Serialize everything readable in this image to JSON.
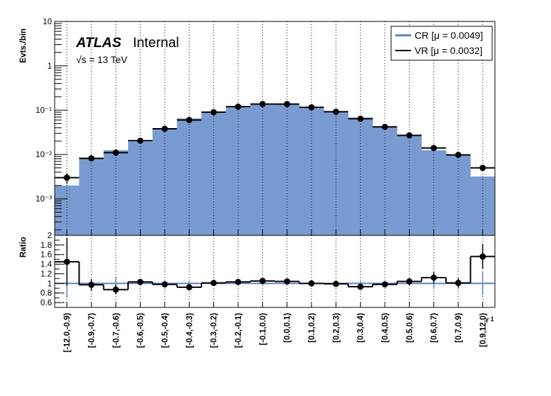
{
  "atlas_label": "ATLAS",
  "atlas_status": "Internal",
  "energy": "√s = 13 TeV",
  "colors": {
    "cr": "#7a9bd1",
    "cr_line": "#5b7fc0",
    "vr": "#000000"
  },
  "chart_data": [
    {
      "type": "bar",
      "panel": "main",
      "ylabel": "Evts./bin",
      "yscale": "log",
      "ylim": [
        0.00015,
        10
      ],
      "yticks": [
        {
          "v": 0.001,
          "t": "10⁻³"
        },
        {
          "v": 0.01,
          "t": "10⁻²"
        },
        {
          "v": 0.1,
          "t": "10⁻¹"
        },
        {
          "v": 1,
          "t": "1"
        },
        {
          "v": 10,
          "t": "10"
        }
      ],
      "categories": [
        "[-12.0,-0.9)",
        "[-0.9,-0.7)",
        "[-0.7,-0.6)",
        "[-0.6,-0.5)",
        "[-0.5,-0.4)",
        "[-0.4,-0.3)",
        "[-0.3,-0.2)",
        "[-0.2,-0.1)",
        "[-0.1,0.0)",
        "[0.0,0.1)",
        "[0.1,0.2)",
        "[0.2,0.3)",
        "[0.3,0.4)",
        "[0.4,0.5)",
        "[0.5,0.6)",
        "[0.6,0.7)",
        "[0.7,0.9)",
        "[0.9,12.0)"
      ],
      "grid": "vertical",
      "legend_position": "top-right",
      "series": [
        {
          "name": "CR [μ = 0.0049]",
          "style": "filled",
          "values": [
            0.002,
            0.0085,
            0.0125,
            0.0195,
            0.038,
            0.065,
            0.088,
            0.118,
            0.132,
            0.135,
            0.118,
            0.092,
            0.068,
            0.042,
            0.027,
            0.0125,
            0.0097,
            0.0032
          ]
        },
        {
          "name": "VR [μ = 0.0032]",
          "style": "step-with-points",
          "values": [
            0.003,
            0.0082,
            0.011,
            0.0205,
            0.038,
            0.06,
            0.09,
            0.12,
            0.137,
            0.137,
            0.116,
            0.092,
            0.064,
            0.042,
            0.027,
            0.014,
            0.0098,
            0.005
          ],
          "errors_low": [
            0.0008,
            0.0006,
            0.0008,
            0.0012,
            0.002,
            0.003,
            0.004,
            0.005,
            0.005,
            0.005,
            0.005,
            0.004,
            0.003,
            0.0025,
            0.0018,
            0.0012,
            0.0008,
            0.0005
          ],
          "errors_high": [
            0.0008,
            0.0006,
            0.0008,
            0.0012,
            0.002,
            0.003,
            0.004,
            0.005,
            0.005,
            0.005,
            0.005,
            0.004,
            0.003,
            0.0025,
            0.0018,
            0.0012,
            0.0008,
            0.0005
          ]
        }
      ]
    },
    {
      "type": "scatter",
      "panel": "ratio",
      "ylabel": "Ratio",
      "xlabel": "γ 1",
      "ylim": [
        0.5,
        2.0
      ],
      "yticks": [
        0.6,
        0.8,
        1,
        1.2,
        1.4,
        1.6,
        1.8,
        2
      ],
      "series": [
        {
          "name": "CR",
          "values": [
            1,
            1,
            1,
            1,
            1,
            1,
            1,
            1,
            1,
            1,
            1,
            1,
            1,
            1,
            1,
            1,
            1,
            1
          ],
          "errors": [
            0.3,
            0.08,
            0.12,
            0.06,
            0.05,
            0.05,
            0.04,
            0.03,
            0.03,
            0.03,
            0.03,
            0.04,
            0.05,
            0.05,
            0.06,
            0.1,
            0.08,
            0.25
          ]
        },
        {
          "name": "VR",
          "values": [
            1.45,
            0.97,
            0.87,
            1.03,
            0.98,
            0.92,
            1.01,
            1.03,
            1.05,
            1.04,
            1.0,
            0.99,
            0.93,
            0.98,
            1.04,
            1.12,
            1.01,
            1.56
          ],
          "errors": [
            0.5,
            0.12,
            0.1,
            0.06,
            0.05,
            0.05,
            0.04,
            0.03,
            0.03,
            0.03,
            0.03,
            0.04,
            0.05,
            0.06,
            0.07,
            0.12,
            0.1,
            0.25
          ]
        }
      ]
    }
  ]
}
